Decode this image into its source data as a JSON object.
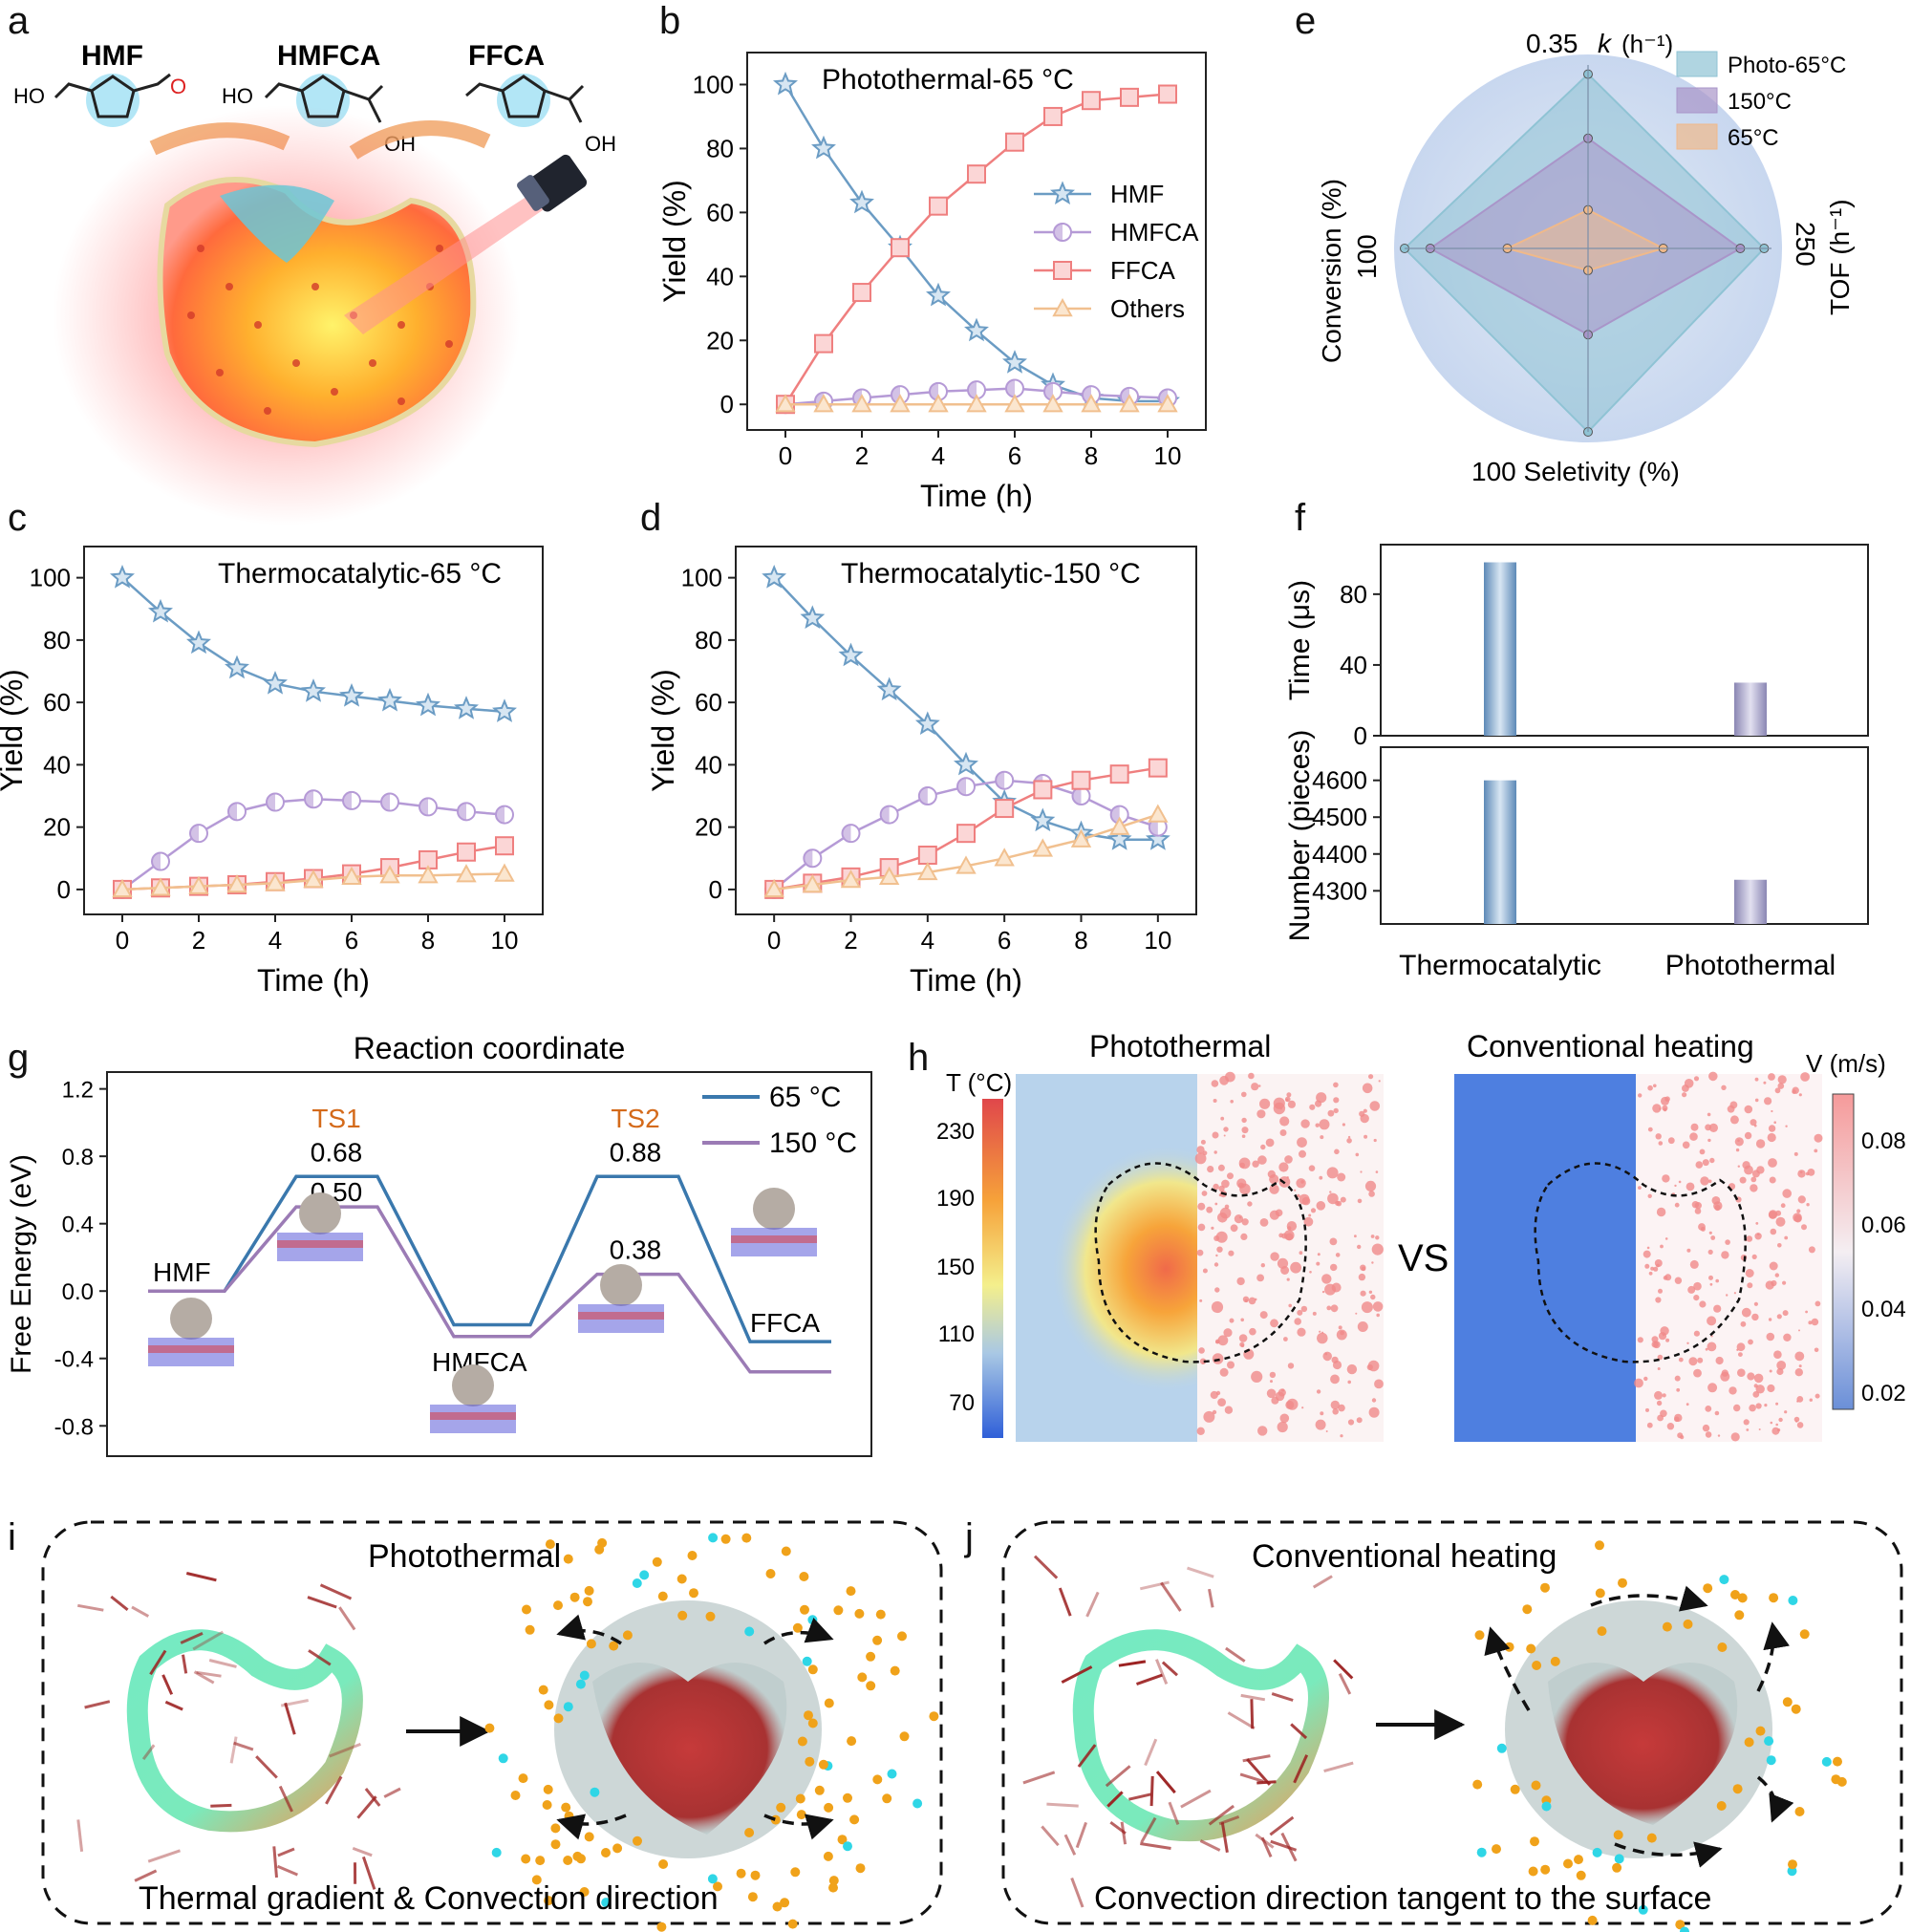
{
  "panel_letters": [
    "a",
    "b",
    "c",
    "d",
    "e",
    "f",
    "g",
    "h",
    "i",
    "j"
  ],
  "panel_a": {
    "molecules": [
      "HMF",
      "HMFCA",
      "FFCA"
    ],
    "atom_labels": {
      "ho1": "HO",
      "ho2": "HO",
      "oh2": "OH",
      "oh3": "OH",
      "o": "O"
    }
  },
  "colors": {
    "HMF": "#6b9cc4",
    "HMFCA": "#b59ad6",
    "FFCA": "#ef7f7f",
    "Others": "#f1c08f",
    "blue_line": "#3a78ad",
    "purple_line": "#9b7bb5",
    "ts_label": "#d46a1a"
  },
  "chart_data": [
    {
      "panel": "b",
      "type": "line",
      "annotation": "Photothermal-65 °C",
      "xlabel": "Time (h)",
      "ylabel": "Yield (%)",
      "xlim": [
        -1,
        11
      ],
      "ylim": [
        -8,
        110
      ],
      "xticks": [
        0,
        2,
        4,
        6,
        8,
        10
      ],
      "yticks": [
        0,
        20,
        40,
        60,
        80,
        100
      ],
      "x": [
        0,
        1,
        2,
        3,
        4,
        5,
        6,
        7,
        8,
        9,
        10
      ],
      "series": [
        {
          "name": "HMF",
          "marker": "star",
          "values": [
            100,
            80,
            63,
            49,
            34,
            23,
            13,
            6,
            2,
            1,
            1
          ]
        },
        {
          "name": "HMFCA",
          "marker": "circle",
          "values": [
            0,
            1,
            2,
            3,
            4,
            4.5,
            5,
            4,
            3,
            2.5,
            2
          ]
        },
        {
          "name": "FFCA",
          "marker": "square",
          "values": [
            0,
            19,
            35,
            49,
            62,
            72,
            82,
            90,
            95,
            96,
            97
          ]
        },
        {
          "name": "Others",
          "marker": "triangle",
          "values": [
            0,
            0,
            0,
            0,
            0,
            0,
            0,
            0,
            0,
            0,
            0
          ]
        }
      ],
      "legend_position": "center-right"
    },
    {
      "panel": "c",
      "type": "line",
      "annotation": "Thermocatalytic-65 °C",
      "xlabel": "Time (h)",
      "ylabel": "Yield (%)",
      "xlim": [
        -1,
        11
      ],
      "ylim": [
        -8,
        110
      ],
      "xticks": [
        0,
        2,
        4,
        6,
        8,
        10
      ],
      "yticks": [
        0,
        20,
        40,
        60,
        80,
        100
      ],
      "x": [
        0,
        1,
        2,
        3,
        4,
        5,
        6,
        7,
        8,
        9,
        10
      ],
      "series": [
        {
          "name": "HMF",
          "marker": "star",
          "values": [
            100,
            89,
            79,
            71,
            66,
            63.5,
            62,
            60.5,
            59,
            58,
            57
          ]
        },
        {
          "name": "HMFCA",
          "marker": "circle",
          "values": [
            0,
            9,
            18,
            25,
            28,
            29,
            28.5,
            28,
            26.5,
            25,
            24
          ]
        },
        {
          "name": "FFCA",
          "marker": "square",
          "values": [
            0,
            0.5,
            1,
            1.5,
            2.5,
            3.5,
            5,
            7,
            9.5,
            12,
            14
          ]
        },
        {
          "name": "Others",
          "marker": "triangle",
          "values": [
            0,
            0.5,
            1,
            1.5,
            2,
            3,
            4,
            4.5,
            4.5,
            4.8,
            5
          ]
        }
      ]
    },
    {
      "panel": "d",
      "type": "line",
      "annotation": "Thermocatalytic-150 °C",
      "xlabel": "Time (h)",
      "ylabel": "Yield (%)",
      "xlim": [
        -1,
        11
      ],
      "ylim": [
        -8,
        110
      ],
      "xticks": [
        0,
        2,
        4,
        6,
        8,
        10
      ],
      "yticks": [
        0,
        20,
        40,
        60,
        80,
        100
      ],
      "x": [
        0,
        1,
        2,
        3,
        4,
        5,
        6,
        7,
        8,
        9,
        10
      ],
      "series": [
        {
          "name": "HMF",
          "marker": "star",
          "values": [
            100,
            87,
            75,
            64,
            53,
            40,
            28,
            22,
            18,
            16,
            16
          ]
        },
        {
          "name": "HMFCA",
          "marker": "circle",
          "values": [
            0,
            10,
            18,
            24,
            30,
            33,
            35,
            34,
            30,
            24,
            20
          ]
        },
        {
          "name": "FFCA",
          "marker": "square",
          "values": [
            0,
            2,
            4,
            7,
            11,
            18,
            26,
            32,
            35,
            37,
            39
          ]
        },
        {
          "name": "Others",
          "marker": "triangle",
          "values": [
            0,
            1.5,
            3,
            4,
            5.5,
            7.5,
            10,
            13,
            16,
            20,
            24
          ]
        }
      ]
    },
    {
      "panel": "e",
      "type": "radar",
      "axes": [
        {
          "label": "k (h⁻¹)",
          "max_label": "0.35",
          "position": "top"
        },
        {
          "label": "TOF (h⁻¹)",
          "max_label": "250",
          "position": "right"
        },
        {
          "label": "Seletivity (%)",
          "max_label": "100",
          "position": "bottom"
        },
        {
          "label": "Conversion (%)",
          "max_label": "100",
          "position": "left"
        }
      ],
      "top_label_value": "0.35",
      "top_label_k": "k",
      "top_label_unit": "(h⁻¹)",
      "right_label_value": "250",
      "right_label_title": "TOF (h⁻¹)",
      "bottom_label": "100 Seletivity (%)",
      "left_label_value": "100",
      "left_label_title": "Conversion (%)",
      "series": [
        {
          "name": "Photo-65°C",
          "values": [
            0.95,
            0.96,
            1.0,
            1.0
          ],
          "color": "#8fc3d4"
        },
        {
          "name": "150°C",
          "values": [
            0.6,
            0.83,
            0.47,
            0.86
          ],
          "color": "#a995c9"
        },
        {
          "name": "65°C",
          "values": [
            0.21,
            0.41,
            0.12,
            0.44
          ],
          "color": "#f0b98a"
        }
      ]
    },
    {
      "panel": "f",
      "type": "bar",
      "categories": [
        "Thermocatalytic",
        "Photothermal"
      ],
      "top": {
        "ylabel": "Time (μs)",
        "yticks": [
          0,
          40,
          80
        ],
        "ylim": [
          0,
          108
        ],
        "values": [
          98,
          30
        ]
      },
      "bottom": {
        "ylabel": "Number (pieces)",
        "yticks": [
          4300,
          4400,
          4500,
          4600
        ],
        "ylim": [
          4210,
          4690
        ],
        "values": [
          4600,
          4330
        ]
      }
    },
    {
      "panel": "g",
      "type": "line",
      "title": "Reaction coordinate",
      "ylabel": "Free Energy (eV)",
      "ylim": [
        -0.98,
        1.3
      ],
      "yticks": [
        -0.8,
        -0.4,
        0.0,
        0.4,
        0.8,
        1.2
      ],
      "ytick_labels": [
        "-0.8",
        "-0.4",
        "0.0",
        "0.4",
        "0.8",
        "1.2"
      ],
      "states": [
        "HMF",
        "TS1",
        "HMFCA",
        "TS2",
        "FFCA"
      ],
      "series": [
        {
          "name": "65 °C",
          "values": [
            0.0,
            0.68,
            -0.2,
            0.68,
            -0.3
          ],
          "color": "#3a78ad"
        },
        {
          "name": "150 °C",
          "values": [
            0.0,
            0.5,
            -0.27,
            0.1,
            -0.48
          ],
          "color": "#9b7bb5"
        }
      ],
      "value_labels": [
        "0.68",
        "0.50",
        "0.88",
        "0.38"
      ],
      "ts_labels": [
        "TS1",
        "TS2"
      ],
      "state_labels": [
        "HMF",
        "HMFCA",
        "FFCA"
      ]
    },
    {
      "panel": "h",
      "type": "heatmap",
      "titles": [
        "Photothermal",
        "Conventional heating"
      ],
      "vs_label": "VS",
      "temp_colorbar": {
        "title": "T (°C)",
        "ticks": [
          "230",
          "190",
          "150",
          "110",
          "70"
        ]
      },
      "velocity_colorbar": {
        "title": "V (m/s)",
        "ticks": [
          "0.08",
          "0.06",
          "0.04",
          "0.02"
        ]
      }
    }
  ],
  "panel_i": {
    "title": "Photothermal",
    "caption": "Thermal gradient & Convection direction"
  },
  "panel_j": {
    "title": "Conventional heating",
    "caption": "Convection direction tangent to the surface"
  }
}
